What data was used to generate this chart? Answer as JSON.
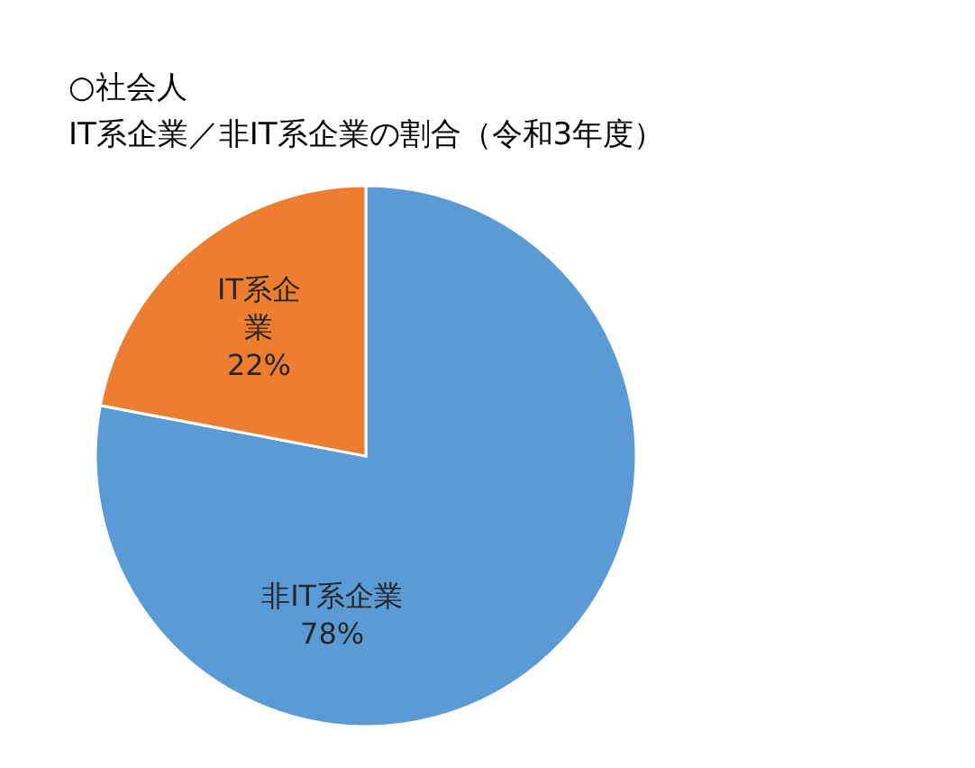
{
  "chart_data": {
    "type": "pie",
    "title": "○社会人",
    "subtitle": "IT系企業／非IT系企業の割合（令和3年度）",
    "categories": [
      "非IT系企業",
      "IT系企業"
    ],
    "values": [
      78,
      22
    ],
    "colors": [
      "#5b9bd5",
      "#ed7d31"
    ],
    "value_labels": [
      "78%",
      "22%"
    ]
  }
}
